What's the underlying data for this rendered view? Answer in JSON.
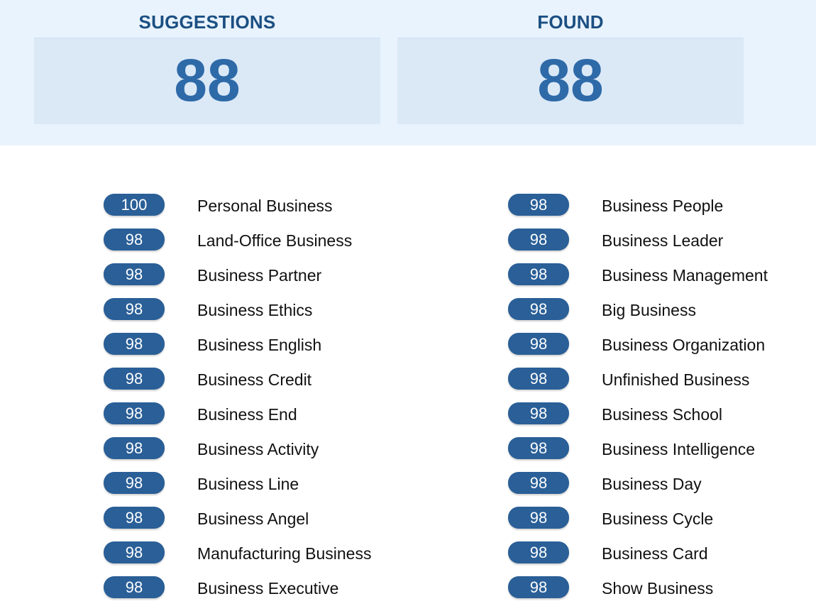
{
  "stats": {
    "suggestions_label": "SUGGESTIONS",
    "suggestions_value": "88",
    "found_label": "FOUND",
    "found_value": "88"
  },
  "results_left": [
    {
      "score": "100",
      "term": "Personal Business"
    },
    {
      "score": "98",
      "term": "Land-Office Business"
    },
    {
      "score": "98",
      "term": "Business Partner"
    },
    {
      "score": "98",
      "term": "Business Ethics"
    },
    {
      "score": "98",
      "term": "Business English"
    },
    {
      "score": "98",
      "term": "Business Credit"
    },
    {
      "score": "98",
      "term": "Business End"
    },
    {
      "score": "98",
      "term": "Business Activity"
    },
    {
      "score": "98",
      "term": "Business Line"
    },
    {
      "score": "98",
      "term": "Business Angel"
    },
    {
      "score": "98",
      "term": "Manufacturing Business"
    },
    {
      "score": "98",
      "term": "Business Executive"
    }
  ],
  "results_right": [
    {
      "score": "98",
      "term": "Business People"
    },
    {
      "score": "98",
      "term": "Business Leader"
    },
    {
      "score": "98",
      "term": "Business Management"
    },
    {
      "score": "98",
      "term": "Big Business"
    },
    {
      "score": "98",
      "term": "Business Organization"
    },
    {
      "score": "98",
      "term": "Unfinished Business"
    },
    {
      "score": "98",
      "term": "Business School"
    },
    {
      "score": "98",
      "term": "Business Intelligence"
    },
    {
      "score": "98",
      "term": "Business Day"
    },
    {
      "score": "98",
      "term": "Business Cycle"
    },
    {
      "score": "98",
      "term": "Business Card"
    },
    {
      "score": "98",
      "term": "Show Business"
    }
  ],
  "colors": {
    "band_bg": "#e9f3fd",
    "card_bg": "#dbe9f7",
    "label": "#1b4f82",
    "number": "#2e6aa8",
    "pill": "#2a5f97"
  }
}
